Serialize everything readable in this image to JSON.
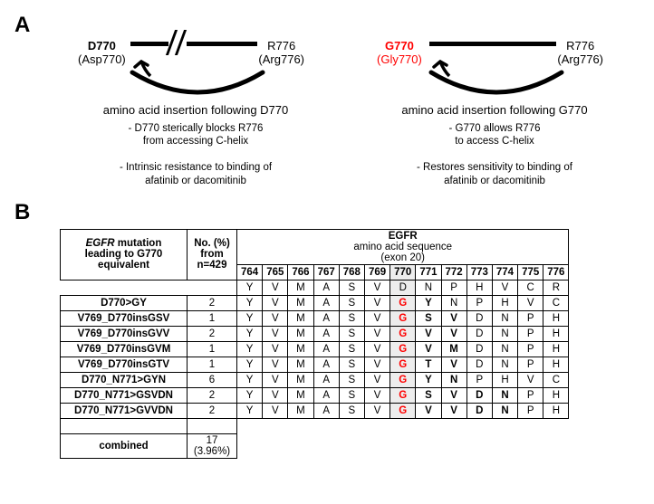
{
  "panelA": {
    "label": "A",
    "left": {
      "res_left_line1": "D770",
      "res_left_line2": "(Asp770)",
      "res_left_color": "#000000",
      "res_right_line1": "R776",
      "res_right_line2": "(Arg776)",
      "caption": "amino acid insertion following D770",
      "note1": "- D770 sterically blocks R776",
      "note2": "from accessing C-helix",
      "note3": "- Intrinsic resistance to binding of",
      "note4": "afatinib or dacomitinib"
    },
    "right": {
      "res_left_line1": "G770",
      "res_left_line2": "(Gly770)",
      "res_left_color": "#ff0000",
      "res_right_line1": "R776",
      "res_right_line2": "(Arg776)",
      "caption": "amino acid insertion following G770",
      "note1": "- G770 allows R776",
      "note2": "to access C-helix",
      "note3": "- Restores sensitivity to binding of",
      "note4": "afatinib or dacomitinib"
    }
  },
  "panelB": {
    "label": "B",
    "header": {
      "mut_col_l1": "EGFR",
      "mut_col_l2": "mutation",
      "mut_col_l3": "leading to G770",
      "mut_col_l4": "equivalent",
      "no_l1": "No. (%)",
      "no_l2": "from",
      "no_l3": "n=429",
      "egfr": "EGFR",
      "aa_seq": "amino acid sequence",
      "exon": "(exon 20)"
    },
    "positions": [
      "764",
      "765",
      "766",
      "767",
      "768",
      "769",
      "770",
      "771",
      "772",
      "773",
      "774",
      "775",
      "776"
    ],
    "wt": [
      "Y",
      "V",
      "M",
      "A",
      "S",
      "V",
      "D",
      "N",
      "P",
      "H",
      "V",
      "C",
      "R"
    ],
    "rows": [
      {
        "name": "D770>GY",
        "n": "2",
        "seq": [
          "Y",
          "V",
          "M",
          "A",
          "S",
          "V",
          "G",
          "Y",
          "N",
          "P",
          "H",
          "V",
          "C"
        ],
        "bold_from": 7,
        "bold_to": 8
      },
      {
        "name": "V769_D770insGSV",
        "n": "1",
        "seq": [
          "Y",
          "V",
          "M",
          "A",
          "S",
          "V",
          "G",
          "S",
          "V",
          "D",
          "N",
          "P",
          "H"
        ],
        "bold_from": 7,
        "bold_to": 9
      },
      {
        "name": "V769_D770insGVV",
        "n": "2",
        "seq": [
          "Y",
          "V",
          "M",
          "A",
          "S",
          "V",
          "G",
          "V",
          "V",
          "D",
          "N",
          "P",
          "H"
        ],
        "bold_from": 7,
        "bold_to": 9
      },
      {
        "name": "V769_D770insGVM",
        "n": "1",
        "seq": [
          "Y",
          "V",
          "M",
          "A",
          "S",
          "V",
          "G",
          "V",
          "M",
          "D",
          "N",
          "P",
          "H"
        ],
        "bold_from": 7,
        "bold_to": 9
      },
      {
        "name": "V769_D770insGTV",
        "n": "1",
        "seq": [
          "Y",
          "V",
          "M",
          "A",
          "S",
          "V",
          "G",
          "T",
          "V",
          "D",
          "N",
          "P",
          "H"
        ],
        "bold_from": 7,
        "bold_to": 9
      },
      {
        "name": "D770_N771>GYN",
        "n": "6",
        "seq": [
          "Y",
          "V",
          "M",
          "A",
          "S",
          "V",
          "G",
          "Y",
          "N",
          "P",
          "H",
          "V",
          "C"
        ],
        "bold_from": 7,
        "bold_to": 9
      },
      {
        "name": "D770_N771>GSVDN",
        "n": "2",
        "seq": [
          "Y",
          "V",
          "M",
          "A",
          "S",
          "V",
          "G",
          "S",
          "V",
          "D",
          "N",
          "P",
          "H"
        ],
        "bold_from": 7,
        "bold_to": 11
      },
      {
        "name": "D770_N771>GVVDN",
        "n": "2",
        "seq": [
          "Y",
          "V",
          "M",
          "A",
          "S",
          "V",
          "G",
          "V",
          "V",
          "D",
          "N",
          "P",
          "H"
        ],
        "bold_from": 7,
        "bold_to": 11
      }
    ],
    "combined": {
      "label": "combined",
      "value_l1": "17",
      "value_l2": "(3.96%)"
    }
  }
}
